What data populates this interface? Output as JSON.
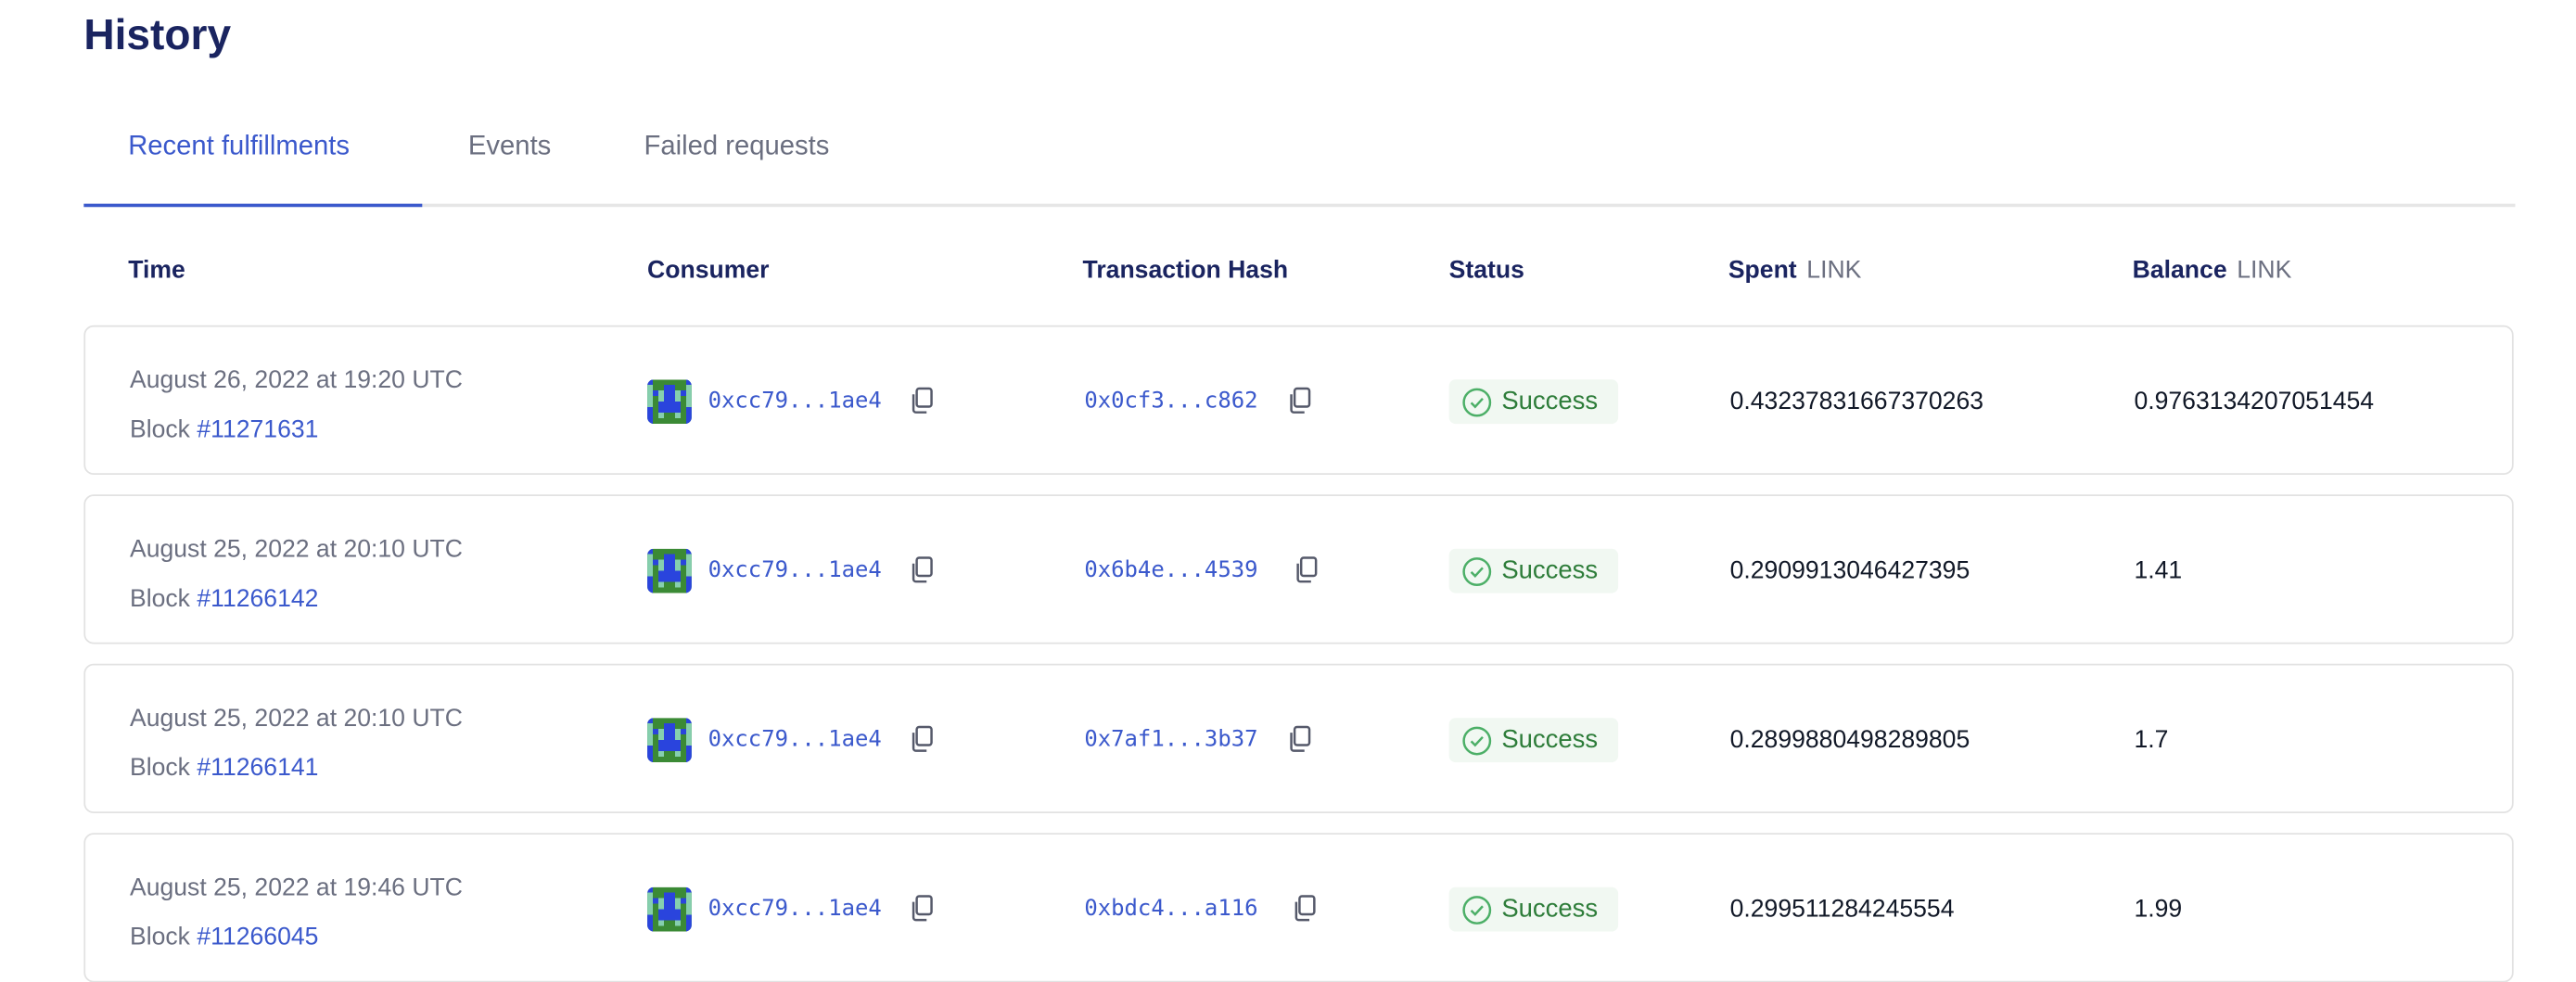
{
  "title": "History",
  "tabs": [
    {
      "label": "Recent fulfillments",
      "active": true
    },
    {
      "label": "Events",
      "active": false
    },
    {
      "label": "Failed requests",
      "active": false
    }
  ],
  "columns": {
    "time": "Time",
    "consumer": "Consumer",
    "hash": "Transaction Hash",
    "status": "Status",
    "spent": "Spent",
    "spent_unit": "LINK",
    "balance": "Balance",
    "balance_unit": "LINK"
  },
  "colors": {
    "accent": "#3b59cc",
    "navy": "#1a2460",
    "success": "#2e7d3a",
    "success_bg": "#f1f8f2"
  },
  "rows": [
    {
      "time": "August 26, 2022 at 19:20 UTC",
      "block_label": "Block",
      "block": "#11271631",
      "consumer": "0xcc79...1ae4",
      "hash": "0x0cf3...c862",
      "status": "Success",
      "spent": "0.43237831667370263",
      "balance": "0.9763134207051454"
    },
    {
      "time": "August 25, 2022 at 20:10 UTC",
      "block_label": "Block",
      "block": "#11266142",
      "consumer": "0xcc79...1ae4",
      "hash": "0x6b4e...4539",
      "status": "Success",
      "spent": "0.2909913046427395",
      "balance": "1.41"
    },
    {
      "time": "August 25, 2022 at 20:10 UTC",
      "block_label": "Block",
      "block": "#11266141",
      "consumer": "0xcc79...1ae4",
      "hash": "0x7af1...3b37",
      "status": "Success",
      "spent": "0.2899880498289805",
      "balance": "1.7"
    },
    {
      "time": "August 25, 2022 at 19:46 UTC",
      "block_label": "Block",
      "block": "#11266045",
      "consumer": "0xcc79...1ae4",
      "hash": "0xbdc4...a116",
      "status": "Success",
      "spent": "0.299511284245554",
      "balance": "1.99"
    }
  ]
}
